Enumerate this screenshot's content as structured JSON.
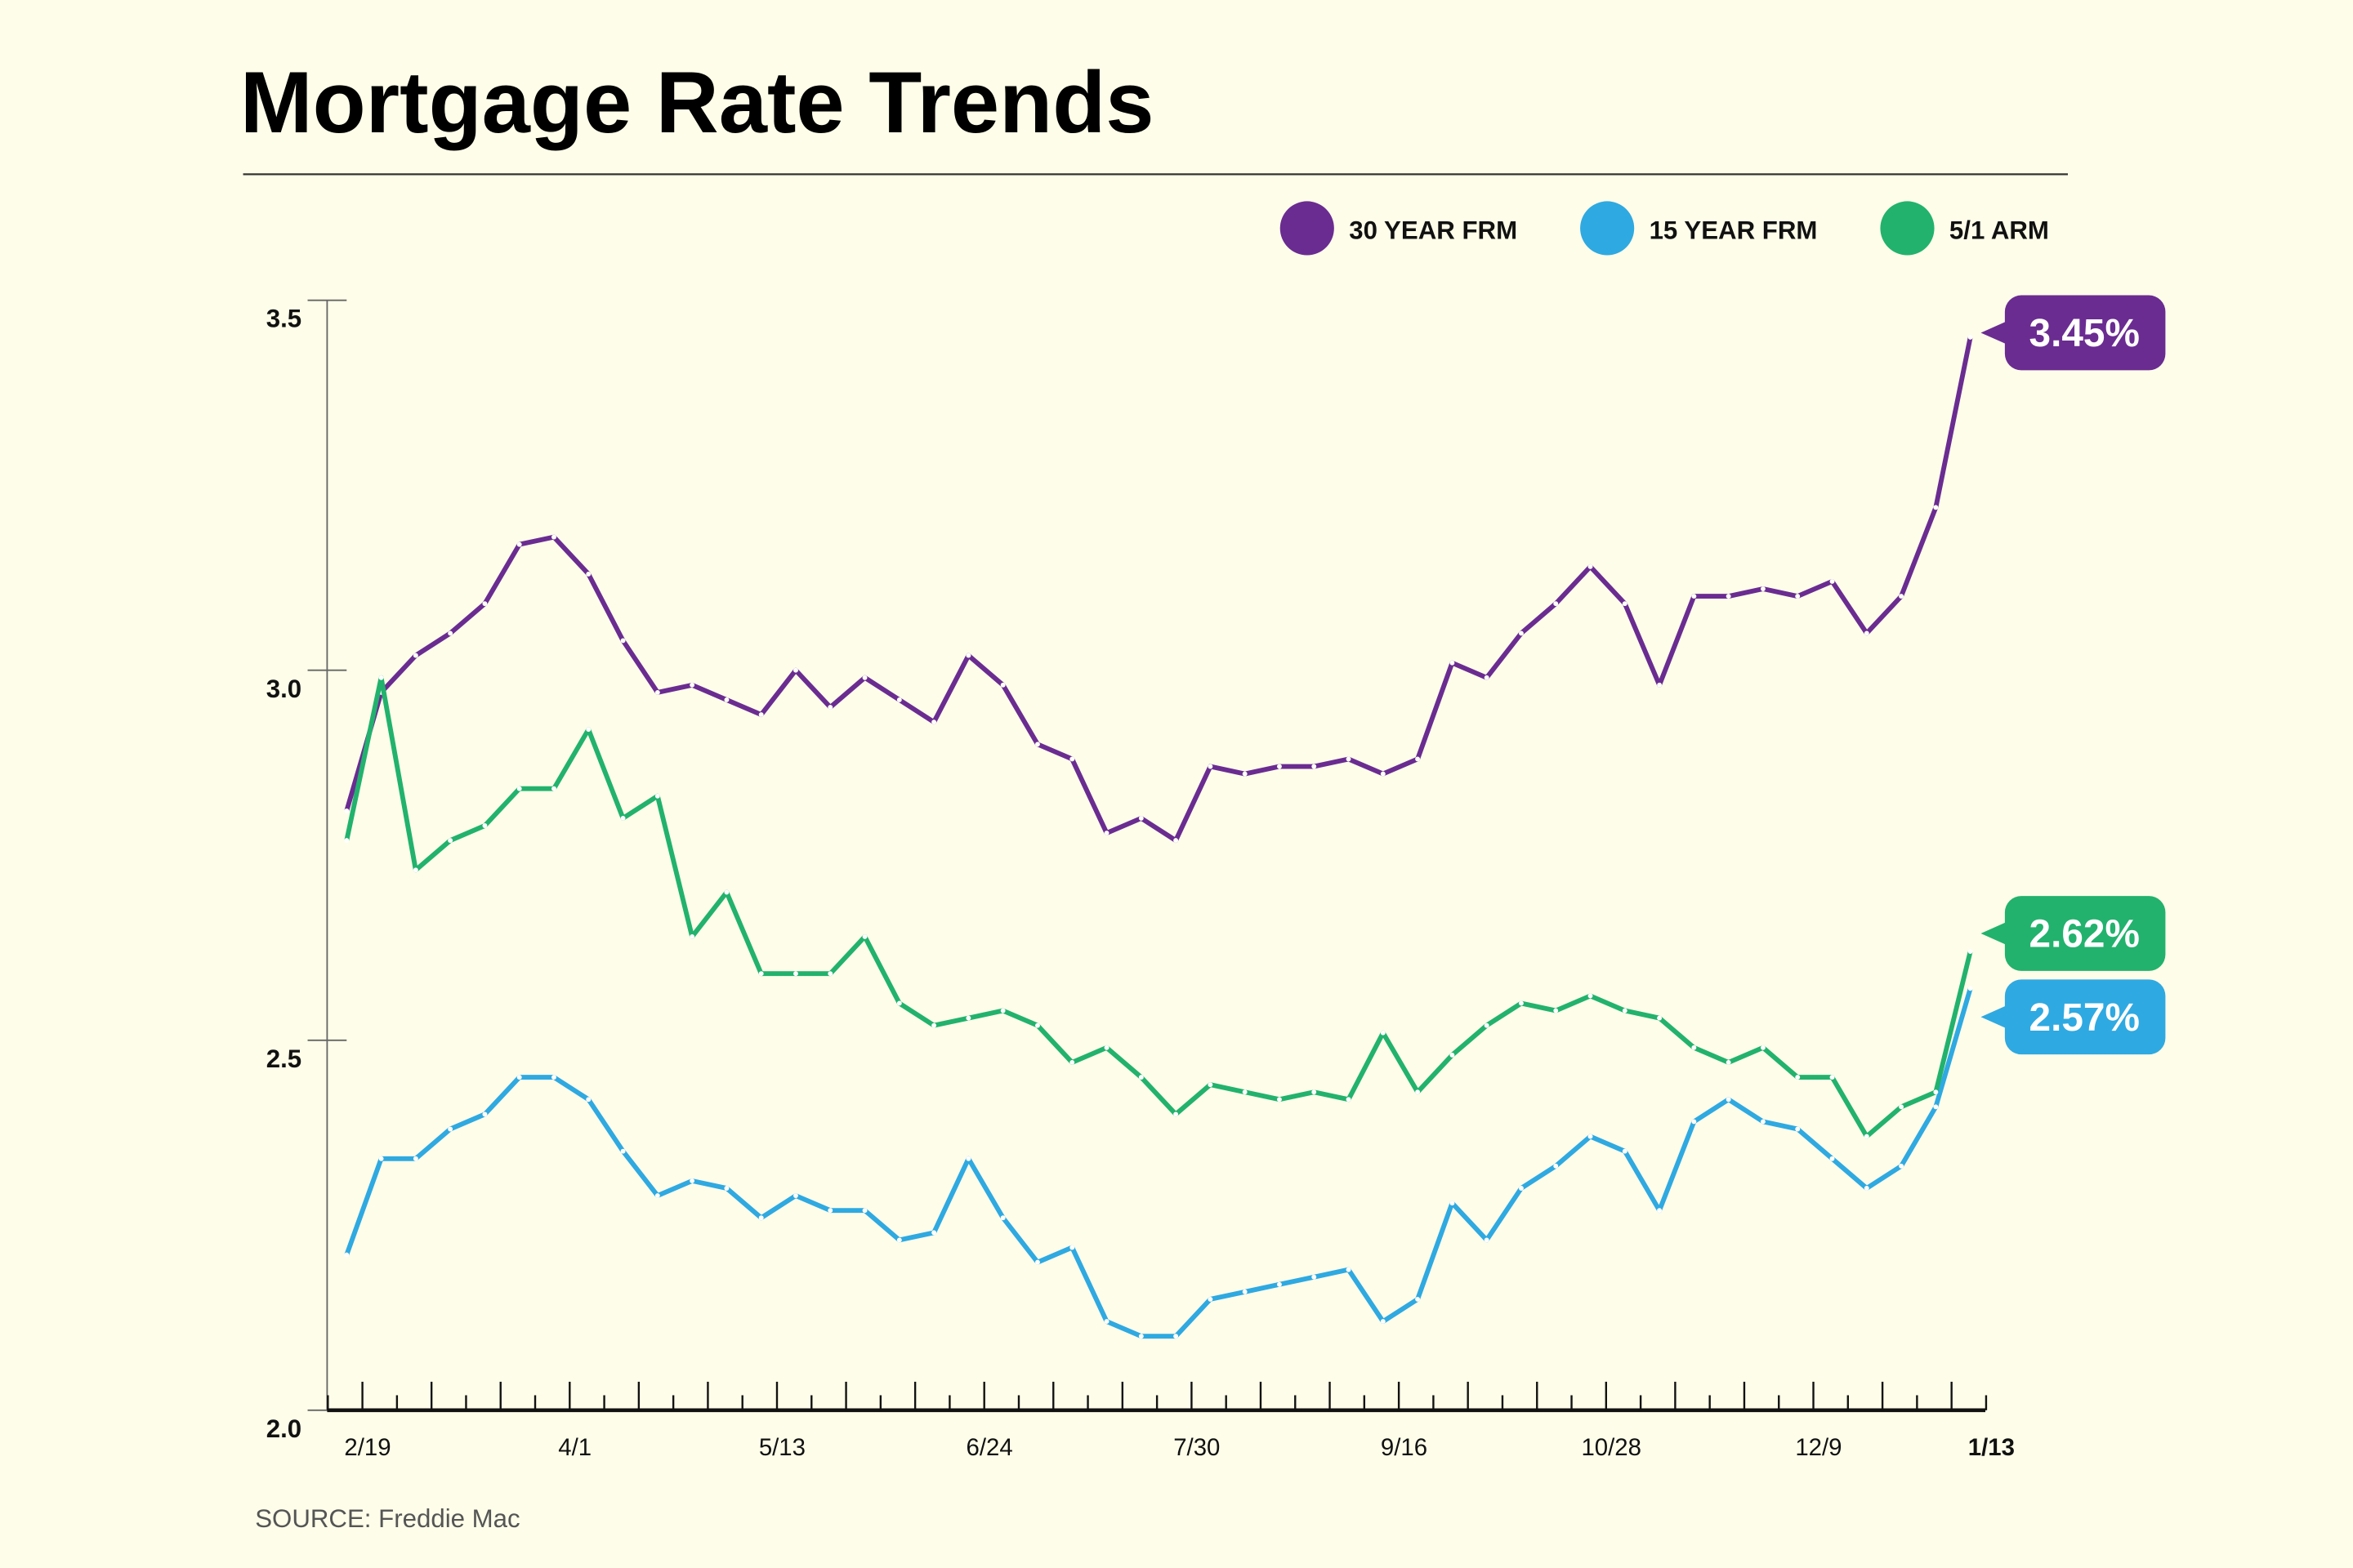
{
  "chart_data": {
    "type": "line",
    "title": "Mortgage Rate Trends",
    "source": "SOURCE: Freddie Mac",
    "legend": "top-right",
    "categories": [
      "2/19",
      null,
      null,
      null,
      null,
      null,
      "4/1",
      null,
      null,
      null,
      null,
      null,
      "5/13",
      null,
      null,
      null,
      null,
      null,
      "6/24",
      null,
      null,
      null,
      null,
      null,
      "7/30",
      null,
      null,
      null,
      null,
      null,
      "9/16",
      null,
      null,
      null,
      null,
      null,
      "10/28",
      null,
      null,
      null,
      null,
      null,
      "12/9",
      null,
      null,
      null,
      null,
      "1/13"
    ],
    "ylim": [
      2,
      3.5
    ],
    "yticks": [
      {
        "value": 2,
        "label": "2.0"
      },
      2.5,
      {
        "value": 3,
        "label": "3.0"
      },
      3.5
    ],
    "series": [
      {
        "name": "30 YEAR FRM",
        "color": "#6a2c91",
        "values": [
          2.81,
          2.97,
          3.02,
          3.05,
          3.09,
          3.17,
          3.18,
          3.13,
          3.04,
          2.97,
          2.98,
          2.96,
          2.94,
          3.0,
          2.95,
          2.99,
          2.96,
          2.93,
          3.02,
          2.98,
          2.9,
          2.88,
          2.78,
          2.8,
          2.77,
          2.87,
          2.86,
          2.87,
          2.87,
          2.88,
          2.86,
          2.88,
          3.01,
          2.99,
          3.05,
          3.09,
          3.14,
          3.09,
          2.98,
          3.1,
          3.1,
          3.11,
          3.1,
          3.12,
          3.05,
          3.1,
          3.22,
          3.45
        ],
        "value_labels": [
          null,
          null,
          null,
          null,
          null,
          null,
          null,
          null,
          null,
          null,
          null,
          null,
          null,
          null,
          null,
          null,
          null,
          null,
          null,
          null,
          null,
          null,
          null,
          null,
          null,
          null,
          null,
          null,
          null,
          null,
          null,
          null,
          null,
          null,
          null,
          null,
          null,
          null,
          null,
          null,
          null,
          null,
          null,
          null,
          null,
          null,
          null,
          "3.45%"
        ]
      },
      {
        "name": "15 YEAR FRM",
        "color": "#2fa9e1",
        "values": [
          2.21,
          2.34,
          2.34,
          2.38,
          2.4,
          2.45,
          2.45,
          2.42,
          2.35,
          2.29,
          2.31,
          2.3,
          2.26,
          2.29,
          2.27,
          2.27,
          2.23,
          2.24,
          2.34,
          2.26,
          2.2,
          2.22,
          2.12,
          2.1,
          2.1,
          2.15,
          2.16,
          2.17,
          2.18,
          2.19,
          2.12,
          2.15,
          2.28,
          2.23,
          2.3,
          2.33,
          2.37,
          2.35,
          2.27,
          2.39,
          2.42,
          2.39,
          2.38,
          2.34,
          2.3,
          2.33,
          2.41,
          2.57
        ],
        "value_labels": [
          null,
          null,
          null,
          null,
          null,
          null,
          null,
          null,
          null,
          null,
          null,
          null,
          null,
          null,
          null,
          null,
          null,
          null,
          null,
          null,
          null,
          null,
          null,
          null,
          null,
          null,
          null,
          null,
          null,
          null,
          null,
          null,
          null,
          null,
          null,
          null,
          null,
          null,
          null,
          null,
          null,
          null,
          null,
          null,
          null,
          null,
          null,
          "2.57%"
        ]
      },
      {
        "name": "5/1 ARM",
        "color": "#22b26e",
        "values": [
          2.77,
          2.99,
          2.73,
          2.77,
          2.79,
          2.84,
          2.84,
          2.92,
          2.8,
          2.83,
          2.64,
          2.7,
          2.59,
          2.59,
          2.59,
          2.64,
          2.55,
          2.52,
          2.53,
          2.54,
          2.52,
          2.47,
          2.49,
          2.45,
          2.4,
          2.44,
          2.43,
          2.42,
          2.43,
          2.42,
          2.51,
          2.43,
          2.48,
          2.52,
          2.55,
          2.54,
          2.56,
          2.54,
          2.53,
          2.49,
          2.47,
          2.49,
          2.45,
          2.45,
          2.37,
          2.41,
          2.43,
          2.62
        ],
        "value_labels": [
          null,
          null,
          null,
          null,
          null,
          null,
          null,
          null,
          null,
          null,
          null,
          null,
          null,
          null,
          null,
          null,
          null,
          null,
          null,
          null,
          null,
          null,
          null,
          null,
          null,
          null,
          null,
          null,
          null,
          null,
          null,
          null,
          null,
          null,
          null,
          null,
          null,
          null,
          null,
          null,
          null,
          null,
          null,
          null,
          null,
          null,
          null,
          "2.62%"
        ]
      }
    ]
  }
}
